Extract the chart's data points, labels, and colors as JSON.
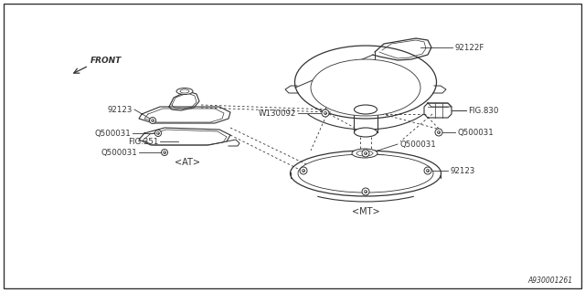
{
  "background_color": "#ffffff",
  "line_color": "#333333",
  "fig_width": 6.4,
  "fig_height": 3.2,
  "dpi": 100,
  "labels": {
    "part_92122F": "92122F",
    "w130092": "W130092",
    "fig830": "FIG.830",
    "q500031_a": "Q500031",
    "q500031_b": "Q500031",
    "q500031_c": "Q500031",
    "q500031_d": "Q500031",
    "part_92123_left": "92123",
    "part_92123_right": "92123",
    "fig351": "FIG.351",
    "at_label": "<AT>",
    "mt_label": "<MT>",
    "front_label": "FRONT",
    "diagram_id": "A930001261"
  }
}
